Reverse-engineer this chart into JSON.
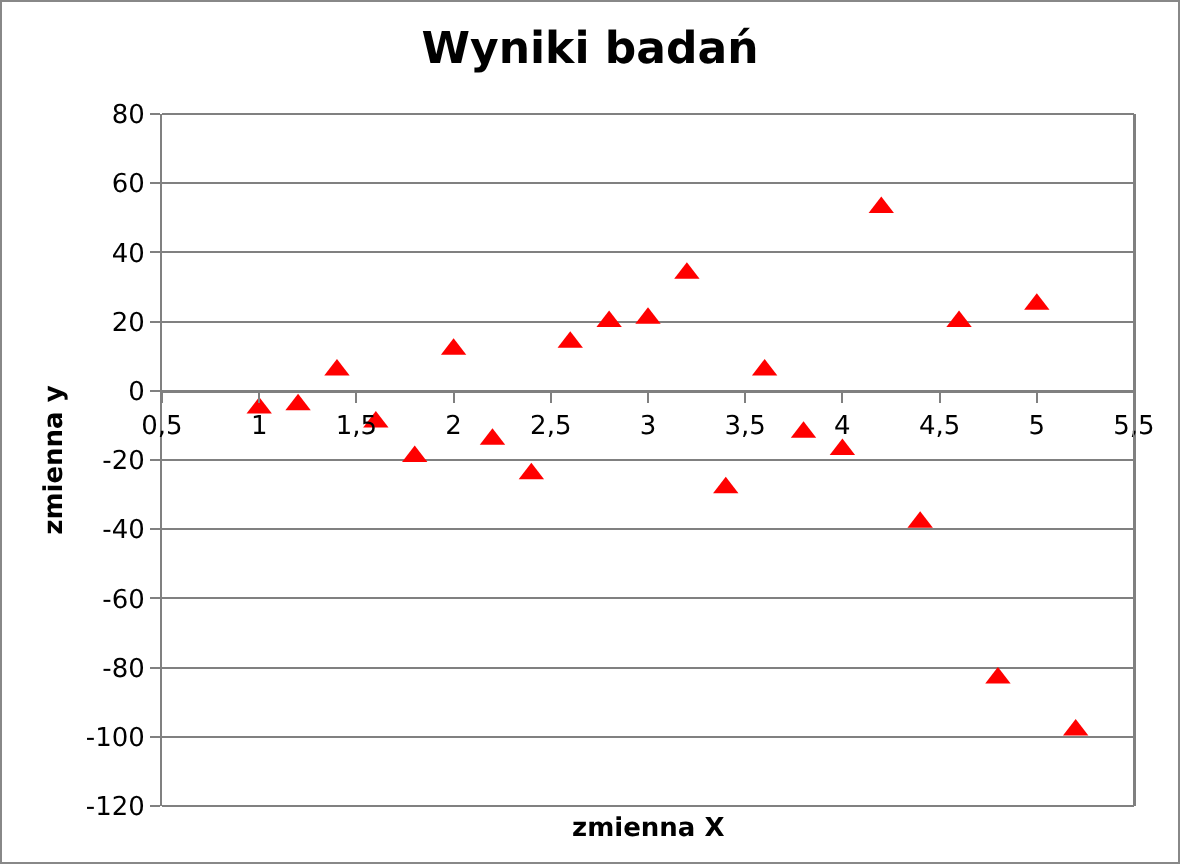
{
  "chart_data": {
    "type": "scatter",
    "title": "Wyniki badań",
    "xlabel": "zmienna X",
    "ylabel": "zmienna y",
    "x": [
      1.0,
      1.2,
      1.4,
      1.6,
      1.8,
      2.0,
      2.2,
      2.4,
      2.6,
      2.8,
      3.0,
      3.2,
      3.4,
      3.6,
      3.8,
      4.0,
      4.2,
      4.4,
      4.6,
      4.8,
      5.0,
      5.2
    ],
    "series": [
      {
        "color": "#ff0000",
        "values": [
          -5,
          -4,
          6,
          -9,
          -19,
          12,
          -14,
          -24,
          14,
          20,
          21,
          34,
          -28,
          6,
          -12,
          -17,
          53,
          -38,
          20,
          -83,
          25,
          -98
        ]
      }
    ],
    "xlim": [
      0.5,
      5.5
    ],
    "xticks": [
      {
        "value": 0.5,
        "label": "0,5"
      },
      1,
      {
        "value": 1.5,
        "label": "1,5"
      },
      2,
      {
        "value": 2.5,
        "label": "2,5"
      },
      3,
      {
        "value": 3.5,
        "label": "3,5"
      },
      4,
      {
        "value": 4.5,
        "label": "4,5"
      },
      5,
      {
        "value": 5.5,
        "label": "5,5"
      }
    ],
    "ylim": [
      -120,
      80
    ],
    "yticks": [
      -120,
      -100,
      -80,
      -60,
      -40,
      -20,
      0,
      20,
      40,
      60,
      80
    ],
    "grid": "y",
    "marker": "triangle"
  }
}
